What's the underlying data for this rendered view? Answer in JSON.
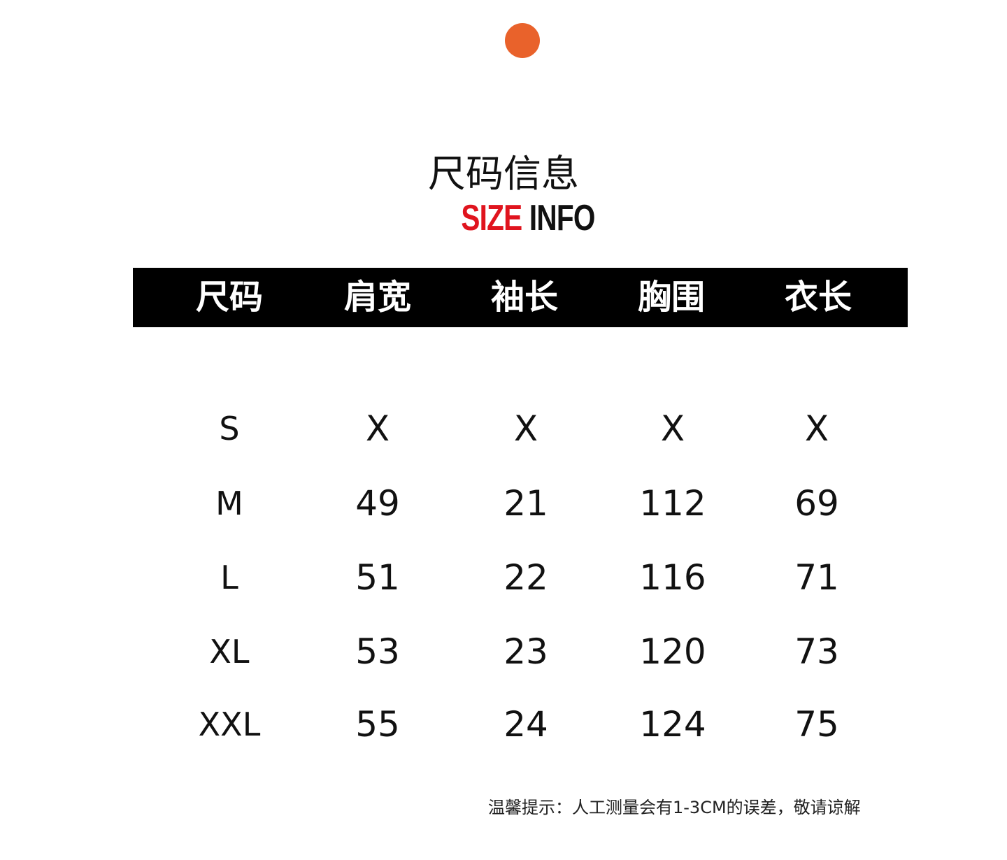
{
  "accent_dot_color": "#e9622b",
  "title": {
    "cn": "尺码信息",
    "en_red": "SIZE",
    "en_black": "INFO"
  },
  "table": {
    "headers": [
      "尺码",
      "肩宽",
      "袖长",
      "胸围",
      "衣长"
    ],
    "rows": [
      [
        "S",
        "X",
        "X",
        "X",
        "X"
      ],
      [
        "M",
        "49",
        "21",
        "112",
        "69"
      ],
      [
        "L",
        "51",
        "22",
        "116",
        "71"
      ],
      [
        "XL",
        "53",
        "23",
        "120",
        "73"
      ],
      [
        "XXL",
        "55",
        "24",
        "124",
        "75"
      ]
    ]
  },
  "note": "温馨提示：人工测量会有1-3CM的误差，敬请谅解"
}
